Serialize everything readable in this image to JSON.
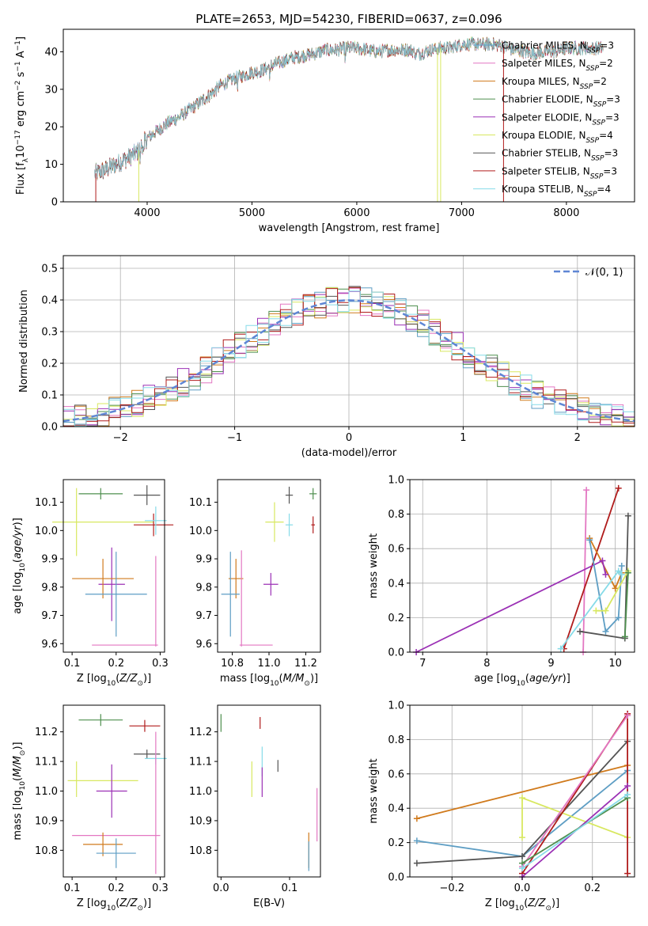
{
  "figure": {
    "title": "PLATE=2653, MJD=54230, FIBERID=0637, z=0.096"
  },
  "legend_spectrum": [
    {
      "label": "Chabrier MILES, N",
      "sub": "SSP",
      "tail": "=3",
      "color": "#5e9ec4"
    },
    {
      "label": "Salpeter MILES, N",
      "sub": "SSP",
      "tail": "=2",
      "color": "#e377c2"
    },
    {
      "label": "Kroupa MILES, N",
      "sub": "SSP",
      "tail": "=2",
      "color": "#d07a1c"
    },
    {
      "label": "Chabrier ELODIE, N",
      "sub": "SSP",
      "tail": "=3",
      "color": "#4f8f4f"
    },
    {
      "label": "Salpeter ELODIE, N",
      "sub": "SSP",
      "tail": "=3",
      "color": "#9b30b5"
    },
    {
      "label": "Kroupa ELODIE, N",
      "sub": "SSP",
      "tail": "=4",
      "color": "#d8e860"
    },
    {
      "label": "Chabrier STELIB, N",
      "sub": "SSP",
      "tail": "=3",
      "color": "#555555"
    },
    {
      "label": "Salpeter STELIB, N",
      "sub": "SSP",
      "tail": "=3",
      "color": "#b01c1c"
    },
    {
      "label": "Kroupa STELIB, N",
      "sub": "SSP",
      "tail": "=4",
      "color": "#86dbe8"
    }
  ],
  "series_colors": {
    "c_miles": "#5e9ec4",
    "s_miles": "#e377c2",
    "k_miles": "#d07a1c",
    "c_elodie": "#4f8f4f",
    "s_elodie": "#9b30b5",
    "k_elodie": "#d8e860",
    "c_stelib": "#555555",
    "s_stelib": "#b01c1c",
    "k_stelib": "#86dbe8",
    "blue_line": "#5f86d4",
    "normal_curve": "#5f86d4"
  },
  "normal_legend": "𝒩(0, 1)",
  "chart_data": [
    {
      "id": "spectrum",
      "type": "line",
      "title": "PLATE=2653, MJD=54230, FIBERID=0637, z=0.096",
      "xlabel": "wavelength [Angstrom, rest frame]",
      "ylabel": "Flux [fλ10⁻¹⁷ erg cm⁻² s⁻¹ A⁻¹]",
      "xlim": [
        3200,
        8650
      ],
      "ylim": [
        0,
        46
      ],
      "xticks": [
        4000,
        5000,
        6000,
        7000,
        8000
      ],
      "yticks": [
        0,
        10,
        20,
        30,
        40
      ],
      "grid": false,
      "legend_position": "top-right",
      "continuum": {
        "x": [
          3500,
          3600,
          3700,
          3800,
          3900,
          4000,
          4100,
          4200,
          4300,
          4400,
          4500,
          4600,
          4700,
          4800,
          4900,
          5000,
          5100,
          5200,
          5300,
          5400,
          5500,
          5600,
          5700,
          5800,
          5900,
          6000,
          6100,
          6200,
          6300,
          6400,
          6500,
          6600,
          6700,
          6800,
          6900,
          7000,
          7100,
          7200,
          7300,
          7400,
          7500,
          7600,
          7700,
          7800,
          7900,
          8000,
          8100,
          8200,
          8300
        ],
        "y": [
          7.5,
          8.5,
          10,
          11.5,
          13,
          17,
          19,
          21,
          22.5,
          24.5,
          26.5,
          28.5,
          31,
          32.5,
          33.5,
          34.5,
          35,
          36.5,
          37.5,
          38.5,
          39,
          39.5,
          40.5,
          40.5,
          41,
          41,
          40.5,
          40,
          40.5,
          40.5,
          40.5,
          39.5,
          40.5,
          41,
          41,
          42,
          42,
          42,
          42,
          41.5,
          40.5,
          40,
          39.5,
          40,
          40,
          41,
          41,
          41,
          41
        ]
      },
      "dropouts": [
        {
          "series": "k_elodie",
          "x": 3920,
          "ylow": 0
        },
        {
          "series": "k_elodie",
          "x": 6770,
          "ylow": 0
        },
        {
          "series": "k_elodie",
          "x": 6800,
          "ylow": 0
        },
        {
          "series": "s_stelib",
          "x": 7400,
          "ylow": 0
        },
        {
          "series": "s_stelib",
          "x": 3510,
          "ylow": 0
        }
      ]
    },
    {
      "id": "residuals",
      "type": "histogram",
      "xlabel": "(data-model)/error",
      "ylabel": "Normed distribution",
      "xlim": [
        -2.5,
        2.5
      ],
      "ylim": [
        0,
        0.54
      ],
      "xticks": [
        -2,
        -1,
        0,
        1,
        2
      ],
      "yticks": [
        0.0,
        0.1,
        0.2,
        0.3,
        0.4,
        0.5
      ],
      "grid": true,
      "legend_position": "top-right",
      "bin_width": 0.1,
      "model": "standard normal pdf"
    },
    {
      "id": "age_vs_Z",
      "type": "errorbar",
      "xlabel": "Z [log10(Z/Z⊙)]",
      "ylabel": "age  [log10(age/yr)]",
      "xlim": [
        0.08,
        0.31
      ],
      "ylim": [
        9.57,
        10.18
      ],
      "xticks": [
        0.1,
        0.2,
        0.3
      ],
      "yticks": [
        9.6,
        9.7,
        9.8,
        9.9,
        10.0,
        10.1
      ],
      "grid": false,
      "points": [
        {
          "series": "c_elodie",
          "x": 0.165,
          "xerr": 0.05,
          "y": 10.13,
          "yerr": 0.02
        },
        {
          "series": "c_stelib",
          "x": 0.27,
          "xerr": 0.03,
          "y": 10.125,
          "yerr": 0.035
        },
        {
          "series": "k_elodie",
          "x": 0.11,
          "xerr": 0.0,
          "y": 10.03,
          "yerr": 0.12
        },
        {
          "series": "k_elodie",
          "x": 0.17,
          "xerr": 0.115,
          "y": 10.03,
          "yerr": 0.0
        },
        {
          "series": "s_stelib",
          "x": 0.285,
          "xerr": 0.045,
          "y": 10.02,
          "yerr": 0.04
        },
        {
          "series": "k_stelib",
          "x": 0.29,
          "xerr": 0.025,
          "y": 10.035,
          "yerr": 0.05
        },
        {
          "series": "s_elodie",
          "x": 0.19,
          "xerr": 0.03,
          "y": 9.81,
          "yerr": 0.13
        },
        {
          "series": "k_miles",
          "x": 0.17,
          "xerr": 0.07,
          "y": 9.83,
          "yerr": 0.07
        },
        {
          "series": "c_miles",
          "x": 0.2,
          "xerr": 0.07,
          "y": 9.775,
          "yerr": 0.15
        },
        {
          "series": "s_miles",
          "x": 0.22,
          "xerr": 0.075,
          "y": 9.595,
          "yerr": 0.0
        },
        {
          "series": "s_miles",
          "x": 0.29,
          "xerr": 0.0,
          "y": 9.75,
          "yerr": 0.16
        }
      ]
    },
    {
      "id": "age_vs_mass",
      "type": "errorbar",
      "xlabel": "mass [log10(M/M⊙)]",
      "ylabel": "",
      "xlim": [
        10.72,
        11.28
      ],
      "ylim": [
        9.57,
        10.18
      ],
      "xticks": [
        10.8,
        11.0,
        11.2
      ],
      "yticks": [
        9.6,
        9.7,
        9.8,
        9.9,
        10.0,
        10.1
      ],
      "grid": false,
      "points": [
        {
          "series": "c_elodie",
          "x": 11.24,
          "xerr": 0.02,
          "y": 10.13,
          "yerr": 0.02
        },
        {
          "series": "c_stelib",
          "x": 11.11,
          "xerr": 0.02,
          "y": 10.125,
          "yerr": 0.03
        },
        {
          "series": "k_elodie",
          "x": 11.03,
          "xerr": 0.05,
          "y": 10.03,
          "yerr": 0.07
        },
        {
          "series": "k_stelib",
          "x": 11.11,
          "xerr": 0.02,
          "y": 10.02,
          "yerr": 0.04
        },
        {
          "series": "s_stelib",
          "x": 11.24,
          "xerr": 0.01,
          "y": 10.02,
          "yerr": 0.03
        },
        {
          "series": "s_elodie",
          "x": 11.01,
          "xerr": 0.04,
          "y": 9.81,
          "yerr": 0.04
        },
        {
          "series": "k_miles",
          "x": 10.82,
          "xerr": 0.04,
          "y": 9.83,
          "yerr": 0.07
        },
        {
          "series": "c_miles",
          "x": 10.79,
          "xerr": 0.05,
          "y": 9.775,
          "yerr": 0.15
        },
        {
          "series": "s_miles",
          "x": 10.85,
          "xerr": 0.0,
          "y": 9.76,
          "yerr": 0.17
        },
        {
          "series": "s_miles",
          "x": 10.93,
          "xerr": 0.09,
          "y": 9.595,
          "yerr": 0.0
        }
      ]
    },
    {
      "id": "weight_vs_age",
      "type": "line",
      "xlabel": "age  [log10(age/yr)]",
      "ylabel": "mass weight",
      "xlim": [
        6.8,
        10.3
      ],
      "ylim": [
        0,
        1.0
      ],
      "xticks": [
        7,
        8,
        9,
        10
      ],
      "yticks": [
        0.0,
        0.2,
        0.4,
        0.6,
        0.8,
        1.0
      ],
      "grid": true,
      "series": [
        {
          "series": "s_miles",
          "x": [
            9.5,
            9.55
          ],
          "y": [
            0.0,
            0.94
          ]
        },
        {
          "series": "s_stelib",
          "x": [
            9.2,
            10.05
          ],
          "y": [
            0.02,
            0.95
          ]
        },
        {
          "series": "c_stelib",
          "x": [
            9.45,
            10.15,
            10.2
          ],
          "y": [
            0.12,
            0.08,
            0.79
          ]
        },
        {
          "series": "k_miles",
          "x": [
            9.6,
            10.0,
            10.1
          ],
          "y": [
            0.66,
            0.37,
            0.46
          ]
        },
        {
          "series": "s_elodie",
          "x": [
            6.9,
            9.8,
            9.85
          ],
          "y": [
            0.0,
            0.53,
            0.45
          ]
        },
        {
          "series": "c_miles",
          "x": [
            9.6,
            9.85,
            10.05,
            10.1
          ],
          "y": [
            0.65,
            0.12,
            0.2,
            0.5
          ]
        },
        {
          "series": "k_stelib",
          "x": [
            9.15,
            10.05,
            10.1
          ],
          "y": [
            0.02,
            0.47,
            0.45
          ]
        },
        {
          "series": "k_elodie",
          "x": [
            9.7,
            9.85,
            10.2
          ],
          "y": [
            0.24,
            0.24,
            0.47
          ]
        },
        {
          "series": "c_elodie",
          "x": [
            10.15,
            10.2
          ],
          "y": [
            0.09,
            0.46
          ]
        }
      ]
    },
    {
      "id": "mass_vs_Z",
      "type": "errorbar",
      "xlabel": "Z [log10(Z/Z⊙)]",
      "ylabel": "mass [log10(M/M⊙)]",
      "xlim": [
        0.08,
        0.31
      ],
      "ylim": [
        10.71,
        11.29
      ],
      "xticks": [
        0.1,
        0.2,
        0.3
      ],
      "yticks": [
        10.8,
        10.9,
        11.0,
        11.1,
        11.2
      ],
      "grid": false,
      "points": [
        {
          "series": "c_elodie",
          "x": 0.165,
          "xerr": 0.05,
          "y": 11.24,
          "yerr": 0.02
        },
        {
          "series": "s_stelib",
          "x": 0.265,
          "xerr": 0.035,
          "y": 11.22,
          "yerr": 0.02
        },
        {
          "series": "c_stelib",
          "x": 0.27,
          "xerr": 0.03,
          "y": 11.125,
          "yerr": 0.015
        },
        {
          "series": "k_stelib",
          "x": 0.29,
          "xerr": 0.025,
          "y": 11.11,
          "yerr": 0.02
        },
        {
          "series": "k_elodie",
          "x": 0.11,
          "xerr": 0.0,
          "y": 11.04,
          "yerr": 0.06
        },
        {
          "series": "k_elodie",
          "x": 0.17,
          "xerr": 0.08,
          "y": 11.035,
          "yerr": 0.0
        },
        {
          "series": "s_elodie",
          "x": 0.19,
          "xerr": 0.035,
          "y": 11.0,
          "yerr": 0.09
        },
        {
          "series": "s_miles",
          "x": 0.29,
          "xerr": 0.0,
          "y": 10.96,
          "yerr": 0.24
        },
        {
          "series": "s_miles",
          "x": 0.2,
          "xerr": 0.1,
          "y": 10.85,
          "yerr": 0.0
        },
        {
          "series": "k_miles",
          "x": 0.17,
          "xerr": 0.045,
          "y": 10.82,
          "yerr": 0.04
        },
        {
          "series": "c_miles",
          "x": 0.2,
          "xerr": 0.045,
          "y": 10.79,
          "yerr": 0.05
        }
      ]
    },
    {
      "id": "mass_vs_ebv",
      "type": "errorbar",
      "xlabel": "E(B-V)",
      "ylabel": "",
      "xlim": [
        -0.005,
        0.145
      ],
      "ylim": [
        10.71,
        11.29
      ],
      "xticks": [
        0.0,
        0.1
      ],
      "yticks": [
        10.8,
        10.9,
        11.0,
        11.1,
        11.2
      ],
      "grid": false,
      "points": [
        {
          "series": "c_elodie",
          "x": 0.0,
          "xerr": 0.0,
          "y": 11.23,
          "yerr": 0.03
        },
        {
          "series": "s_stelib",
          "x": 0.057,
          "xerr": 0.0,
          "y": 11.23,
          "yerr": 0.02
        },
        {
          "series": "k_stelib",
          "x": 0.06,
          "xerr": 0.0,
          "y": 11.1,
          "yerr": 0.05
        },
        {
          "series": "c_stelib",
          "x": 0.083,
          "xerr": 0.0,
          "y": 11.085,
          "yerr": 0.02
        },
        {
          "series": "k_elodie",
          "x": 0.045,
          "xerr": 0.0,
          "y": 11.04,
          "yerr": 0.06
        },
        {
          "series": "s_elodie",
          "x": 0.06,
          "xerr": 0.0,
          "y": 11.03,
          "yerr": 0.05
        },
        {
          "series": "s_miles",
          "x": 0.14,
          "xerr": 0.0,
          "y": 10.92,
          "yerr": 0.09
        },
        {
          "series": "k_miles",
          "x": 0.128,
          "xerr": 0.0,
          "y": 10.8,
          "yerr": 0.06
        },
        {
          "series": "c_miles",
          "x": 0.128,
          "xerr": 0.0,
          "y": 10.78,
          "yerr": 0.05
        }
      ]
    },
    {
      "id": "weight_vs_Z",
      "type": "line",
      "xlabel": "Z [log10(Z/Z⊙)]",
      "ylabel": "mass weight",
      "xlim": [
        -0.32,
        0.32
      ],
      "ylim": [
        0,
        1.0
      ],
      "xticks": [
        -0.2,
        0.0,
        0.2
      ],
      "yticks": [
        0.0,
        0.2,
        0.4,
        0.6,
        0.8,
        1.0
      ],
      "grid": true,
      "series": [
        {
          "series": "k_miles",
          "x": [
            -0.3,
            0.3
          ],
          "y": [
            0.34,
            0.65
          ]
        },
        {
          "series": "c_miles",
          "x": [
            -0.3,
            0.0,
            0.3
          ],
          "y": [
            0.21,
            0.12,
            0.62
          ]
        },
        {
          "series": "c_stelib",
          "x": [
            -0.3,
            0.0,
            0.3
          ],
          "y": [
            0.08,
            0.12,
            0.79
          ]
        },
        {
          "series": "k_elodie",
          "x": [
            0.0,
            0.0,
            0.3
          ],
          "y": [
            0.23,
            0.46,
            0.23
          ]
        },
        {
          "series": "s_stelib",
          "x": [
            0.0,
            0.3,
            0.3
          ],
          "y": [
            0.02,
            0.95,
            0.02
          ]
        },
        {
          "series": "s_miles",
          "x": [
            0.0,
            0.3
          ],
          "y": [
            0.06,
            0.94
          ]
        },
        {
          "series": "s_elodie",
          "x": [
            0.0,
            0.3
          ],
          "y": [
            0.0,
            0.53
          ]
        },
        {
          "series": "c_elodie",
          "x": [
            0.0,
            0.3
          ],
          "y": [
            0.08,
            0.46
          ]
        },
        {
          "series": "k_stelib",
          "x": [
            0.0,
            0.3
          ],
          "y": [
            0.05,
            0.48
          ]
        }
      ]
    }
  ]
}
